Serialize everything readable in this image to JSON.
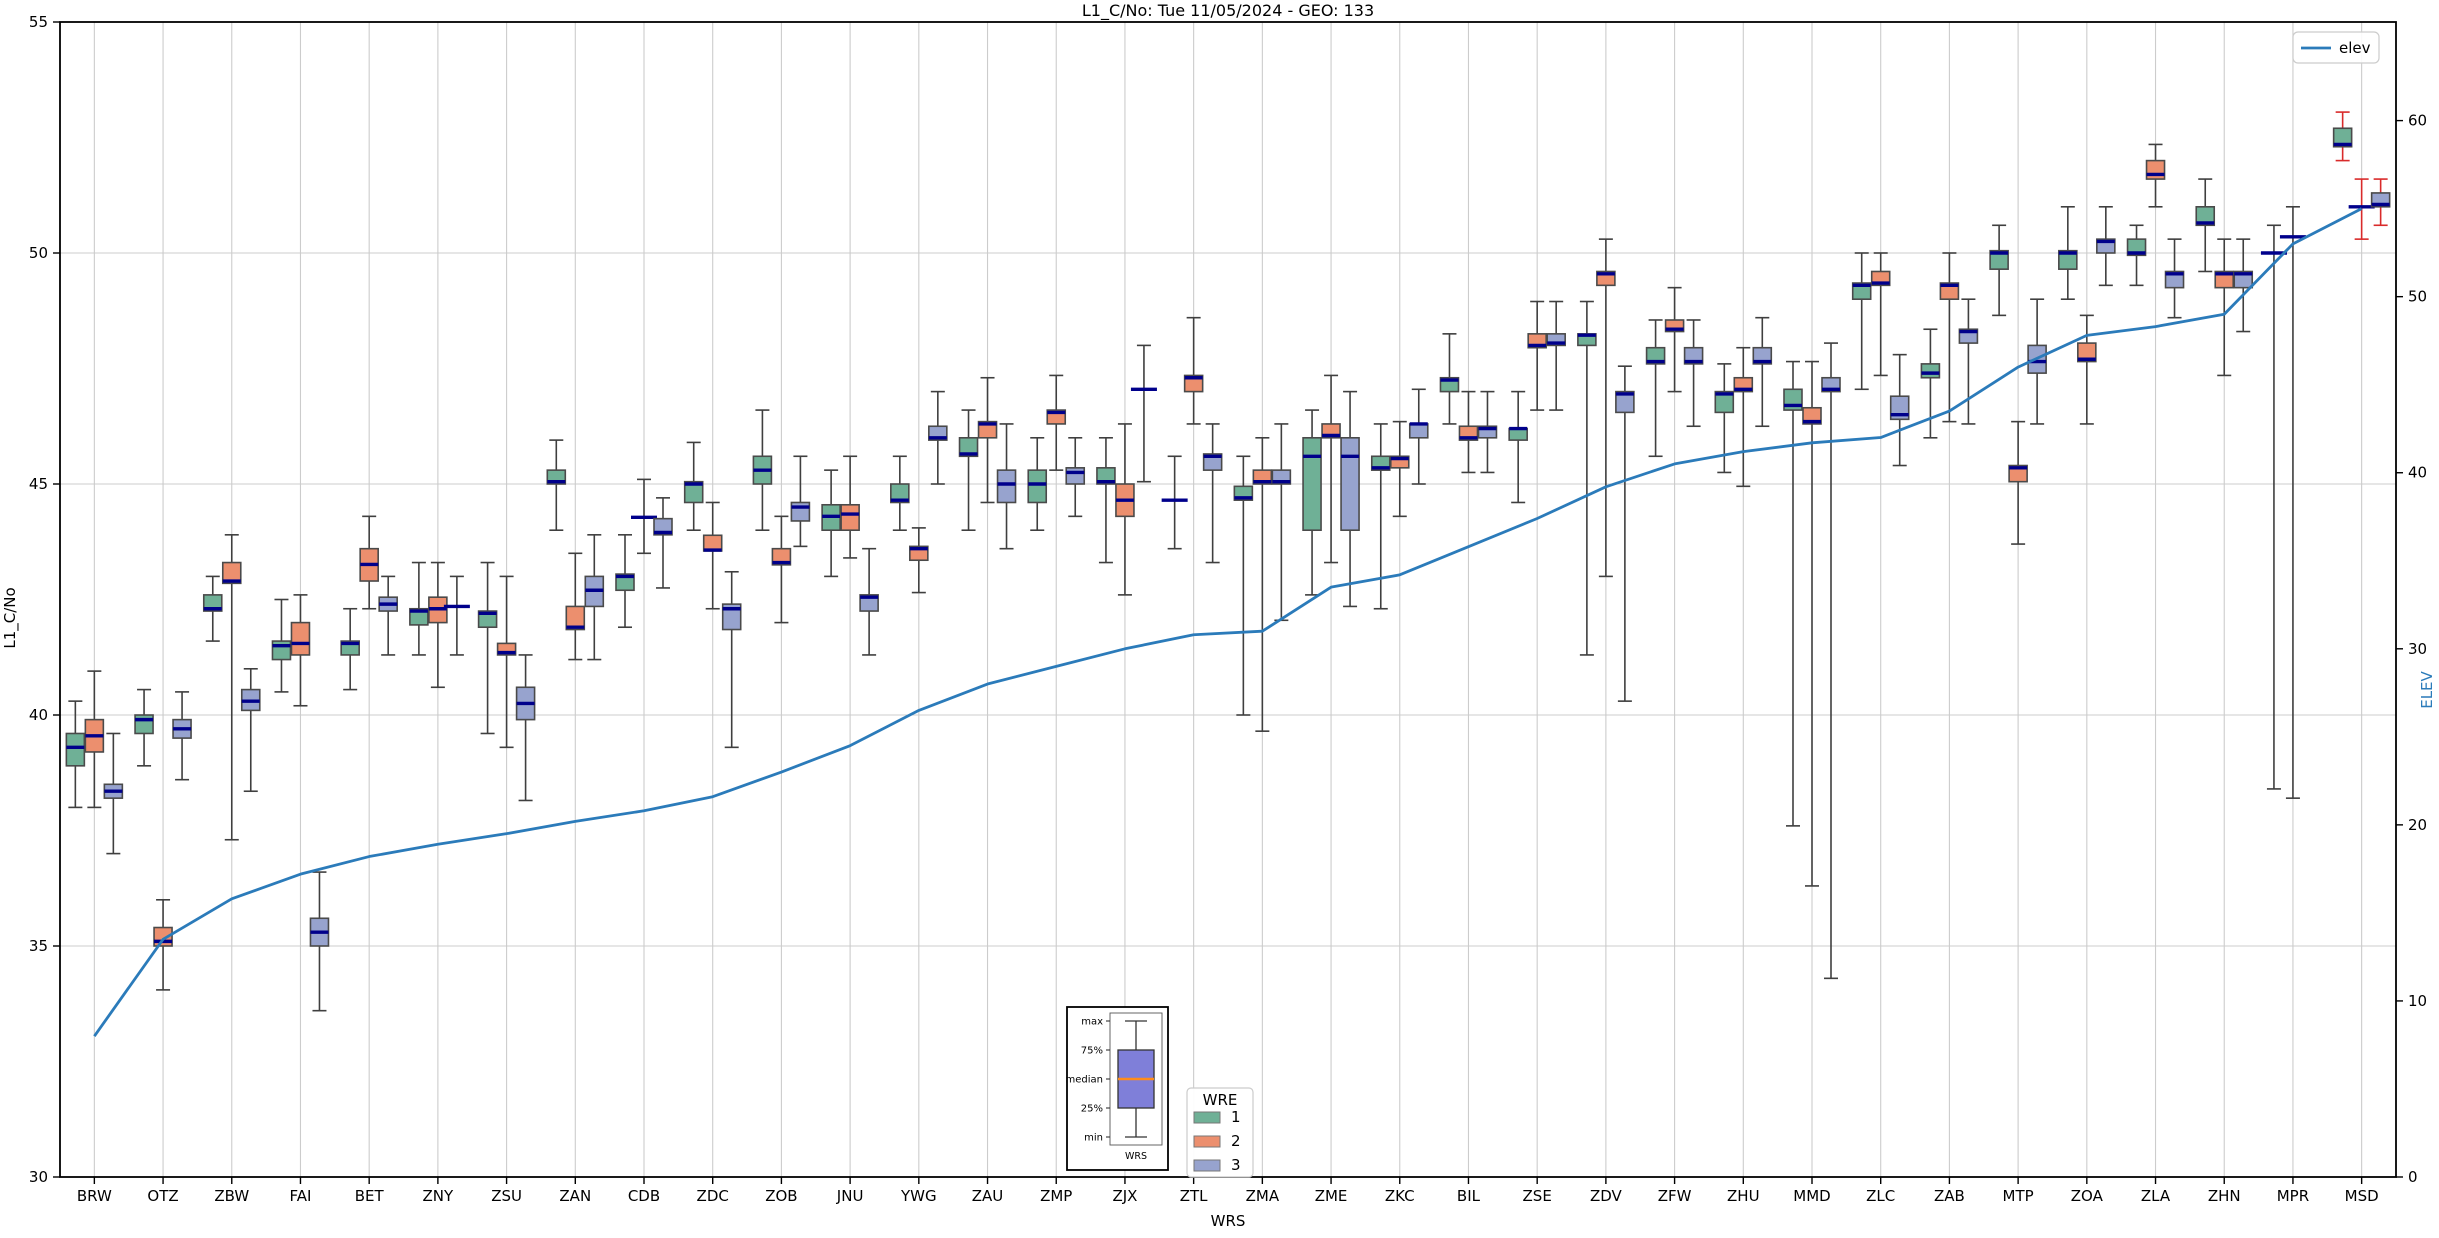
{
  "title": "L1_C/No: Tue 11/05/2024 - GEO: 133",
  "axes": {
    "left_label": "L1_C/No",
    "right_label": "ELEV",
    "x_label": "WRS",
    "left_ticks": [
      30,
      35,
      40,
      45,
      50,
      55
    ],
    "right_ticks": [
      0,
      10,
      20,
      30,
      40,
      50,
      60
    ],
    "ylim": [
      30,
      55
    ],
    "elev_lim": [
      0,
      60
    ]
  },
  "legend": {
    "elev_label": "elev"
  },
  "wre_legend": {
    "title": "WRE",
    "items": [
      {
        "label": "1",
        "color": "#6fb096"
      },
      {
        "label": "2",
        "color": "#ec8f6e"
      },
      {
        "label": "3",
        "color": "#97a3ce"
      }
    ]
  },
  "inset": {
    "labels": [
      "max",
      "75%",
      "median",
      "25%",
      "min"
    ],
    "xlabel": "WRS",
    "box_color": "#7f7fd9",
    "median_color": "#ff8c1a"
  },
  "colors": {
    "median": "#00008b",
    "box_edge": "#4a4a4a",
    "whisker": "#3f3f3f",
    "red_whisker": "#d92b2b",
    "grid": "#cccccc",
    "spine": "#000000",
    "elev_line": "#2b7bba",
    "elev_text": "#2b7bba"
  },
  "chart_data": {
    "type": "box+line",
    "title": "L1_C/No: Tue 11/05/2024 - GEO: 133",
    "xlabel": "WRS",
    "ylabel": "L1_C/No",
    "y2label": "ELEV",
    "ylim": [
      30,
      55
    ],
    "y2lim": [
      0,
      60
    ],
    "grid": true,
    "categories": [
      "BRW",
      "OTZ",
      "ZBW",
      "FAI",
      "BET",
      "ZNY",
      "ZSU",
      "ZAN",
      "CDB",
      "ZDC",
      "ZOB",
      "JNU",
      "YWG",
      "ZAU",
      "ZMP",
      "ZJX",
      "ZTL",
      "ZMA",
      "ZME",
      "ZKC",
      "BIL",
      "ZSE",
      "ZDV",
      "ZFW",
      "ZHU",
      "MMD",
      "ZLC",
      "ZAB",
      "MTP",
      "ZOA",
      "ZLA",
      "ZHN",
      "MPR",
      "MSD"
    ],
    "box_format": "[median, q1, q3, whisker_low, whisker_high, flags] ; flags: deg=median-only, red=red whiskers",
    "series": [
      {
        "name": "1",
        "color": "#6fb096",
        "boxes": [
          [
            39.3,
            38.9,
            39.6,
            38.0,
            40.3
          ],
          [
            39.9,
            39.6,
            40.0,
            38.9,
            40.55
          ],
          [
            42.3,
            42.25,
            42.6,
            41.6,
            43.0
          ],
          [
            41.5,
            41.2,
            41.6,
            40.5,
            42.5
          ],
          [
            41.55,
            41.3,
            41.6,
            40.55,
            42.3
          ],
          [
            42.25,
            41.95,
            42.3,
            41.3,
            43.3
          ],
          [
            42.2,
            41.9,
            42.25,
            39.6,
            43.3
          ],
          [
            45.05,
            45.0,
            45.3,
            44.0,
            45.95
          ],
          [
            43.0,
            42.7,
            43.05,
            41.9,
            43.9
          ],
          [
            45.0,
            44.6,
            45.05,
            44.0,
            45.9
          ],
          [
            45.3,
            45.0,
            45.6,
            44.0,
            46.6
          ],
          [
            44.3,
            44.0,
            44.55,
            43.0,
            45.3
          ],
          [
            44.65,
            44.6,
            45.0,
            44.0,
            45.6
          ],
          [
            45.65,
            45.6,
            46.0,
            44.0,
            46.6
          ],
          [
            45.0,
            44.6,
            45.3,
            44.0,
            46.0
          ],
          [
            45.05,
            45.0,
            45.35,
            43.3,
            46.0
          ],
          [
            44.65,
            null,
            null,
            43.6,
            45.6,
            "deg"
          ],
          [
            44.7,
            44.65,
            44.95,
            40.0,
            45.6
          ],
          [
            45.6,
            44.0,
            46.0,
            42.6,
            46.6
          ],
          [
            45.35,
            45.3,
            45.6,
            42.3,
            46.3
          ],
          [
            47.25,
            47.0,
            47.3,
            46.3,
            48.25
          ],
          [
            46.2,
            45.95,
            46.2,
            44.6,
            47.0
          ],
          [
            48.22,
            48.0,
            48.25,
            41.3,
            48.95
          ],
          [
            47.65,
            47.6,
            47.95,
            45.6,
            48.55
          ],
          [
            46.95,
            46.55,
            47.0,
            45.25,
            47.6
          ],
          [
            46.7,
            46.6,
            47.05,
            37.6,
            47.65
          ],
          [
            49.3,
            49.0,
            49.35,
            47.05,
            50.0
          ],
          [
            47.4,
            47.3,
            47.6,
            46.0,
            48.35
          ],
          [
            50.0,
            49.65,
            50.05,
            48.65,
            50.6
          ],
          [
            50.0,
            49.65,
            50.05,
            49.0,
            51.0
          ],
          [
            50.0,
            49.95,
            50.3,
            49.3,
            50.6
          ],
          [
            50.65,
            50.6,
            51.0,
            49.6,
            51.6
          ],
          [
            50.0,
            null,
            null,
            38.4,
            50.6,
            "deg"
          ],
          [
            52.35,
            52.3,
            52.7,
            52.0,
            53.05,
            "red"
          ]
        ]
      },
      {
        "name": "2",
        "color": "#ec8f6e",
        "boxes": [
          [
            39.55,
            39.2,
            39.9,
            38.0,
            40.95
          ],
          [
            35.1,
            35.0,
            35.4,
            34.05,
            36.0
          ],
          [
            42.9,
            42.85,
            43.3,
            37.3,
            43.9
          ],
          [
            41.55,
            41.3,
            42.0,
            40.2,
            42.6
          ],
          [
            43.26,
            42.9,
            43.6,
            42.3,
            44.3
          ],
          [
            42.3,
            42.0,
            42.55,
            40.6,
            43.3
          ],
          [
            41.35,
            41.3,
            41.55,
            39.3,
            43.0
          ],
          [
            41.9,
            41.85,
            42.35,
            41.2,
            43.5
          ],
          [
            44.28,
            null,
            null,
            43.5,
            45.1,
            "deg"
          ],
          [
            43.57,
            43.55,
            43.89,
            42.3,
            44.6
          ],
          [
            43.3,
            43.25,
            43.6,
            42.0,
            44.3
          ],
          [
            44.35,
            44.0,
            44.55,
            43.4,
            45.6
          ],
          [
            43.6,
            43.35,
            43.65,
            42.65,
            44.05
          ],
          [
            46.3,
            46.0,
            46.35,
            44.6,
            47.3
          ],
          [
            46.55,
            46.3,
            46.6,
            45.3,
            47.35
          ],
          [
            44.65,
            44.3,
            45.0,
            42.6,
            46.3
          ],
          [
            47.3,
            47.0,
            47.35,
            46.3,
            48.6
          ],
          [
            45.05,
            45.0,
            45.3,
            39.65,
            46.0
          ],
          [
            46.05,
            46.0,
            46.3,
            43.3,
            47.35
          ],
          [
            45.55,
            45.35,
            45.6,
            44.3,
            46.35
          ],
          [
            46.0,
            45.95,
            46.25,
            45.25,
            47.0
          ],
          [
            48.0,
            47.95,
            48.25,
            46.6,
            48.95
          ],
          [
            49.55,
            49.3,
            49.6,
            43.0,
            50.3
          ],
          [
            48.35,
            48.3,
            48.55,
            47.0,
            49.25
          ],
          [
            47.05,
            47.0,
            47.3,
            44.95,
            47.95
          ],
          [
            46.35,
            46.3,
            46.65,
            36.3,
            47.65
          ],
          [
            49.35,
            49.3,
            49.6,
            47.35,
            50.0
          ],
          [
            49.3,
            49.0,
            49.35,
            46.35,
            50.0
          ],
          [
            45.35,
            45.05,
            45.4,
            43.7,
            46.35
          ],
          [
            47.7,
            47.65,
            48.05,
            46.3,
            48.65
          ],
          [
            51.7,
            51.6,
            52.0,
            51.0,
            52.35
          ],
          [
            49.55,
            49.25,
            49.6,
            47.35,
            50.3
          ],
          [
            50.35,
            null,
            null,
            38.2,
            51.0,
            "deg"
          ],
          [
            51.0,
            null,
            null,
            50.3,
            51.6,
            "deg red"
          ]
        ]
      },
      {
        "name": "3",
        "color": "#97a3ce",
        "boxes": [
          [
            38.35,
            38.2,
            38.5,
            37.0,
            39.6
          ],
          [
            39.7,
            39.5,
            39.9,
            38.6,
            40.5
          ],
          [
            40.3,
            40.1,
            40.55,
            38.35,
            41.0
          ],
          [
            35.3,
            35.0,
            35.6,
            33.6,
            36.6
          ],
          [
            42.4,
            42.25,
            42.55,
            41.3,
            43.0
          ],
          [
            42.35,
            null,
            null,
            41.3,
            43.0,
            "deg"
          ],
          [
            40.25,
            39.9,
            40.6,
            38.15,
            41.3
          ],
          [
            42.7,
            42.35,
            43.0,
            41.2,
            43.9
          ],
          [
            43.95,
            43.9,
            44.25,
            42.75,
            44.7
          ],
          [
            42.3,
            41.85,
            42.4,
            39.3,
            43.1
          ],
          [
            44.5,
            44.2,
            44.6,
            43.65,
            45.6
          ],
          [
            42.55,
            42.25,
            42.6,
            41.3,
            43.6
          ],
          [
            46.0,
            45.95,
            46.25,
            45.0,
            47.0
          ],
          [
            45.0,
            44.6,
            45.3,
            43.6,
            46.3
          ],
          [
            45.25,
            45.0,
            45.35,
            44.3,
            46.0
          ],
          [
            47.05,
            null,
            null,
            45.05,
            48.0,
            "deg"
          ],
          [
            45.6,
            45.3,
            45.65,
            43.3,
            46.3
          ],
          [
            45.05,
            45.0,
            45.3,
            42.05,
            46.3
          ],
          [
            45.6,
            44.0,
            46.0,
            42.35,
            47.0
          ],
          [
            46.3,
            46.0,
            46.3,
            45.0,
            47.05
          ],
          [
            46.2,
            46.0,
            46.25,
            45.25,
            47.0
          ],
          [
            48.05,
            48.0,
            48.25,
            46.6,
            48.95
          ],
          [
            46.95,
            46.55,
            47.0,
            40.3,
            47.55
          ],
          [
            47.65,
            47.6,
            47.95,
            46.25,
            48.55
          ],
          [
            47.65,
            47.6,
            47.95,
            46.25,
            48.6
          ],
          [
            47.05,
            47.0,
            47.3,
            34.3,
            48.05
          ],
          [
            46.5,
            46.4,
            46.9,
            45.4,
            47.8
          ],
          [
            48.3,
            48.05,
            48.35,
            46.3,
            49.0
          ],
          [
            47.65,
            47.4,
            48.0,
            46.3,
            49.0
          ],
          [
            50.25,
            50.0,
            50.3,
            49.3,
            51.0
          ],
          [
            49.55,
            49.25,
            49.6,
            48.6,
            50.3
          ],
          [
            49.55,
            49.25,
            49.6,
            48.3,
            50.3
          ],
          null,
          [
            51.05,
            51.0,
            51.3,
            50.6,
            51.6,
            "red"
          ]
        ]
      }
    ],
    "line": {
      "name": "elev",
      "color": "#2b7bba",
      "axis": "right",
      "values": [
        8.0,
        13.5,
        15.8,
        17.2,
        18.2,
        18.9,
        19.5,
        20.2,
        20.8,
        21.6,
        23.0,
        24.5,
        26.5,
        28.0,
        29.0,
        30.0,
        30.8,
        31.0,
        33.5,
        34.2,
        35.8,
        37.4,
        39.2,
        40.5,
        41.2,
        41.7,
        42.0,
        43.5,
        46.0,
        47.8,
        48.3,
        49.0,
        53.0,
        55.0
      ]
    },
    "legend_position": "upper right",
    "wre_legend_position": "lower center"
  }
}
